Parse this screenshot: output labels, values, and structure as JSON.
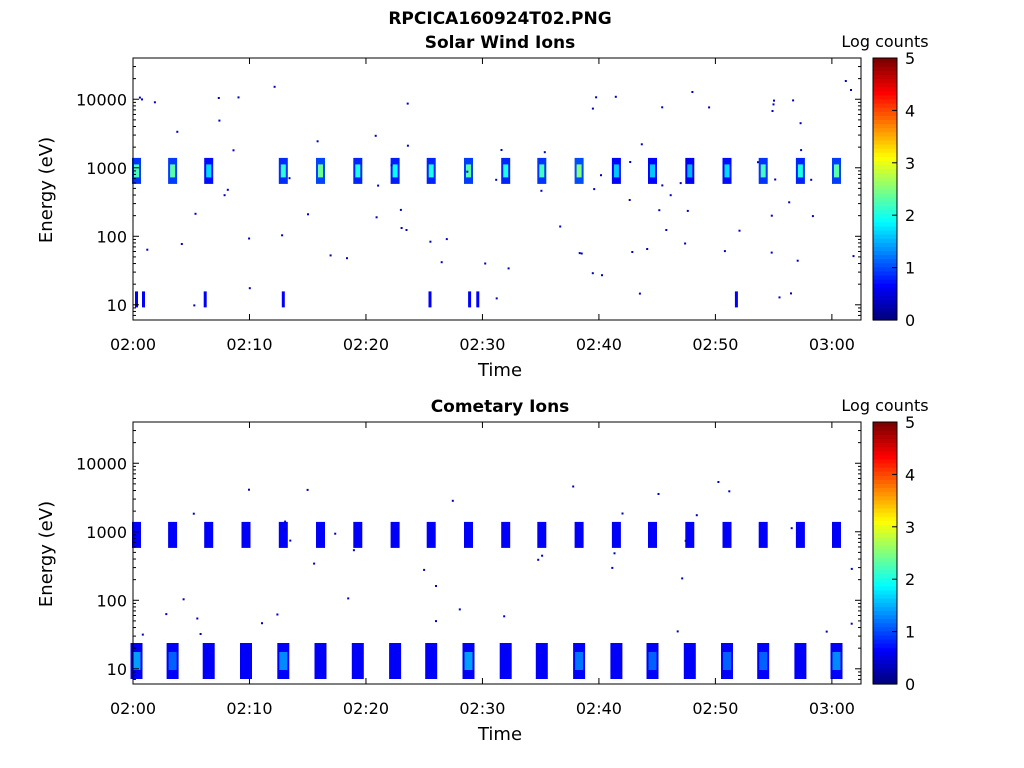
{
  "figure": {
    "title": "RPCICA160924T02.PNG"
  },
  "chart_data": [
    {
      "type": "heatmap",
      "title": "Solar Wind Ions",
      "xlabel": "Time",
      "ylabel": "Energy (eV)",
      "x_tick_labels": [
        "02:00",
        "02:10",
        "02:20",
        "02:30",
        "02:40",
        "02:50",
        "03:00"
      ],
      "y_tick_labels": [
        "10",
        "100",
        "1000",
        "10000"
      ],
      "y_scale": "log",
      "ylim": [
        6,
        40000
      ],
      "xlim_minutes": [
        0,
        62.5
      ],
      "colorbar": {
        "label": "Log counts",
        "range": [
          0,
          5
        ],
        "ticks": [
          "0",
          "1",
          "2",
          "3",
          "4",
          "5"
        ],
        "colormap": "jet"
      },
      "description_series": [
        {
          "name": "",
          "minutes": [
            0.3,
            3.4,
            6.5,
            12.9,
            16.1,
            19.3,
            22.5,
            25.6,
            28.8,
            32.0,
            35.1,
            38.3,
            41.5,
            44.6,
            47.8,
            51.0,
            54.1,
            57.3,
            60.4
          ],
          "energy_ev": 900,
          "log_counts": [
            2.2,
            2.3,
            1.7,
            2.1,
            2.4,
            2.0,
            1.9,
            2.0,
            2.3,
            2.0,
            2.2,
            2.5,
            1.6,
            1.6,
            1.5,
            1.7,
            2.2,
            2.0,
            2.3
          ]
        },
        {
          "name": "",
          "minutes": [
            0.3,
            0.9,
            6.2,
            12.9,
            25.5,
            28.9,
            29.6,
            51.8
          ],
          "energy_ev": 12,
          "log_counts": [
            0.5,
            0.4,
            0.4,
            0.4,
            0.4,
            0.4,
            0.4,
            0.5
          ]
        }
      ]
    },
    {
      "type": "heatmap",
      "title": "Cometary Ions",
      "xlabel": "Time",
      "ylabel": "Energy (eV)",
      "x_tick_labels": [
        "02:00",
        "02:10",
        "02:20",
        "02:30",
        "02:40",
        "02:50",
        "03:00"
      ],
      "y_tick_labels": [
        "10",
        "100",
        "1000",
        "10000"
      ],
      "y_scale": "log",
      "ylim": [
        6,
        40000
      ],
      "xlim_minutes": [
        0,
        62.5
      ],
      "colorbar": {
        "label": "Log counts",
        "range": [
          0,
          5
        ],
        "ticks": [
          "0",
          "1",
          "2",
          "3",
          "4",
          "5"
        ],
        "colormap": "jet"
      },
      "description_series": [
        {
          "name": "",
          "minutes": [
            0.3,
            3.4,
            6.5,
            9.7,
            12.9,
            16.1,
            19.3,
            22.5,
            25.6,
            28.8,
            32.0,
            35.1,
            38.3,
            41.5,
            44.6,
            47.8,
            51.0,
            54.1,
            57.3,
            60.4
          ],
          "energy_ev": 13,
          "log_counts": [
            1.4,
            1.1,
            0.8,
            0.9,
            1.3,
            1.0,
            0.9,
            1.0,
            0.9,
            1.4,
            1.0,
            1.0,
            1.2,
            1.0,
            1.1,
            0.9,
            1.1,
            1.1,
            1.0,
            1.3
          ]
        },
        {
          "name": "",
          "minutes": [
            0.3,
            3.4,
            6.5,
            9.7,
            12.9,
            16.1,
            19.3,
            22.5,
            25.6,
            28.8,
            32.0,
            35.1,
            38.3,
            41.5,
            44.6,
            47.8,
            51.0,
            54.1,
            57.3,
            60.4
          ],
          "energy_ev": 900,
          "log_counts": [
            0.6,
            0.7,
            0.5,
            0.5,
            0.6,
            0.7,
            0.6,
            0.6,
            0.6,
            0.7,
            0.6,
            0.6,
            0.5,
            0.6,
            0.6,
            0.6,
            0.6,
            0.6,
            0.9,
            0.6
          ]
        }
      ]
    }
  ]
}
